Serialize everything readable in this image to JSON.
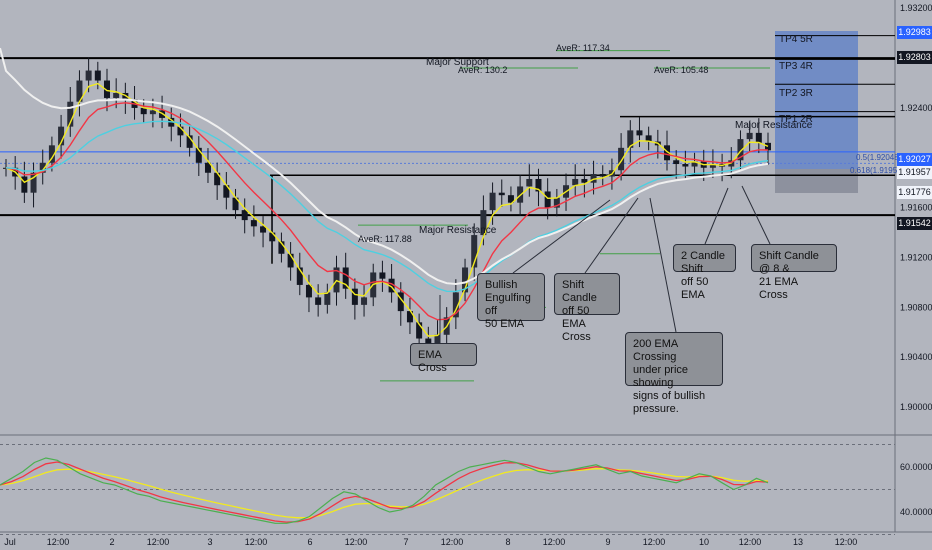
{
  "chart_data": {
    "type": "line",
    "title": "",
    "price_axis": {
      "ylim": [
        1.898,
        1.9325
      ],
      "ticks": [
        "1.93200",
        "1.92800",
        "1.92400",
        "1.92000",
        "1.91600",
        "1.91200",
        "1.90800",
        "1.90400",
        "1.90000"
      ],
      "tick_values": [
        1.932,
        1.928,
        1.924,
        1.92,
        1.916,
        1.912,
        1.908,
        1.904,
        1.9
      ]
    },
    "oscillator_axis": {
      "ylim": [
        32,
        72
      ],
      "ticks": [
        "60.0000",
        "40.0000"
      ],
      "tick_values": [
        60,
        40
      ],
      "levels": [
        70,
        50,
        30
      ]
    },
    "time_axis": {
      "ticks": [
        "Jul",
        "12:00",
        "2",
        "12:00",
        "3",
        "12:00",
        "6",
        "12:00",
        "7",
        "12:00",
        "8",
        "12:00",
        "9",
        "12:00",
        "10",
        "12:00",
        "13",
        "12:00"
      ]
    },
    "price_badges": [
      {
        "label": "1.92983",
        "value": 1.92983,
        "style": "blue"
      },
      {
        "label": "1.92803",
        "value": 1.92803,
        "style": "dark"
      },
      {
        "label": "1.92027",
        "value": 1.92027,
        "style": "blue"
      },
      {
        "label": "1.91957",
        "value": 1.91957,
        "style": "light"
      },
      {
        "label": "1.91776",
        "value": 1.91776,
        "style": "light"
      },
      {
        "label": "1.91542",
        "value": 1.91542,
        "style": "dark"
      }
    ],
    "levels": [
      {
        "name": "Major Support",
        "value": 1.928
      },
      {
        "name": "Major Resistance",
        "value": 1.9154
      },
      {
        "name": "Major Resistance 2",
        "value": 1.9233
      },
      {
        "name": "Mid level",
        "value": 1.9186
      }
    ],
    "close_series": [
      1.9192,
      1.9185,
      1.9172,
      1.9188,
      1.9196,
      1.921,
      1.9225,
      1.9245,
      1.9262,
      1.927,
      1.9262,
      1.9248,
      1.9252,
      1.9247,
      1.924,
      1.9235,
      1.9238,
      1.9232,
      1.9225,
      1.9218,
      1.9208,
      1.9196,
      1.9188,
      1.9178,
      1.9168,
      1.9158,
      1.915,
      1.9145,
      1.914,
      1.9133,
      1.9123,
      1.9112,
      1.9098,
      1.9088,
      1.9082,
      1.9092,
      1.9112,
      1.9095,
      1.9082,
      1.9088,
      1.9108,
      1.9103,
      1.9092,
      1.9077,
      1.9068,
      1.9055,
      1.9047,
      1.9058,
      1.9072,
      1.9092,
      1.9112,
      1.9138,
      1.9158,
      1.9172,
      1.917,
      1.9164,
      1.9177,
      1.9183,
      1.9173,
      1.916,
      1.9168,
      1.9178,
      1.9183,
      1.918,
      1.9187,
      1.9185,
      1.919,
      1.9208,
      1.9222,
      1.9218,
      1.9213,
      1.921,
      1.9198,
      1.9195,
      1.9193,
      1.9197,
      1.9192,
      1.9195,
      1.9193,
      1.9198,
      1.9215,
      1.922,
      1.9212,
      1.9206
    ],
    "oscillator_series": [
      52,
      55,
      58,
      62,
      64,
      63,
      60,
      57,
      55,
      53,
      52,
      50,
      48,
      47,
      45,
      44,
      43,
      42,
      41,
      40,
      39,
      38,
      37,
      36,
      35,
      35,
      36,
      38,
      42,
      46,
      49,
      48,
      45,
      42,
      40,
      41,
      43,
      47,
      52,
      55,
      58,
      60,
      61,
      62,
      63,
      62,
      60,
      58,
      57,
      58,
      59,
      60,
      61,
      59,
      57,
      58,
      56,
      55,
      54,
      53,
      55,
      57,
      56,
      53,
      50,
      52,
      55,
      53
    ],
    "drawings": [
      {
        "type": "ema",
        "name": "EMA 8",
        "color": "#f2ea1f"
      },
      {
        "type": "ema",
        "name": "EMA 21",
        "color": "#f23645"
      },
      {
        "type": "ema",
        "name": "EMA 50",
        "color": "#4dd0e1"
      },
      {
        "type": "ema",
        "name": "EMA 200",
        "color": "#f0f0f0"
      }
    ]
  },
  "labels": {
    "major_support": "Major Support",
    "major_resistance_1": "Major Resistance",
    "major_resistance_2": "Major Resistance",
    "aver_1": "AveR: 117.34",
    "aver_2": "AveR: 130.2",
    "aver_3": "AveR: 105.48",
    "aver_4": "AveR: 117.88",
    "fib_05": "0.5(1.92048)",
    "fib_0618": "0.618(1.91955)",
    "tp4": "TP4 5R",
    "tp3": "TP3 4R",
    "tp2": "TP2 3R",
    "tp1": "TP1 2R"
  },
  "annotations": {
    "ema_cross": "EMA Cross",
    "bullish_engulfing": "Bullish\nEngulfing off\n50 EMA",
    "shift_candle_50": "Shift Candle\noff 50 EMA\nCross",
    "ema200_crossing": "200 EMA Crossing\nunder price showing\nsigns of bullish\npressure.",
    "two_candle_shift": "2 Candle Shift\noff 50 EMA",
    "shift_candle_8_21": "Shift Candle @ 8 &\n21 EMA Cross"
  },
  "colors": {
    "background": "#b2b5be",
    "candle": "#131722",
    "ema8": "#f2ea1f",
    "ema21": "#f23645",
    "ema50": "#4dd0e1",
    "ema200": "#f0f0f0",
    "rsi": "#4caf50",
    "target_zone": "#5b7fc7"
  }
}
